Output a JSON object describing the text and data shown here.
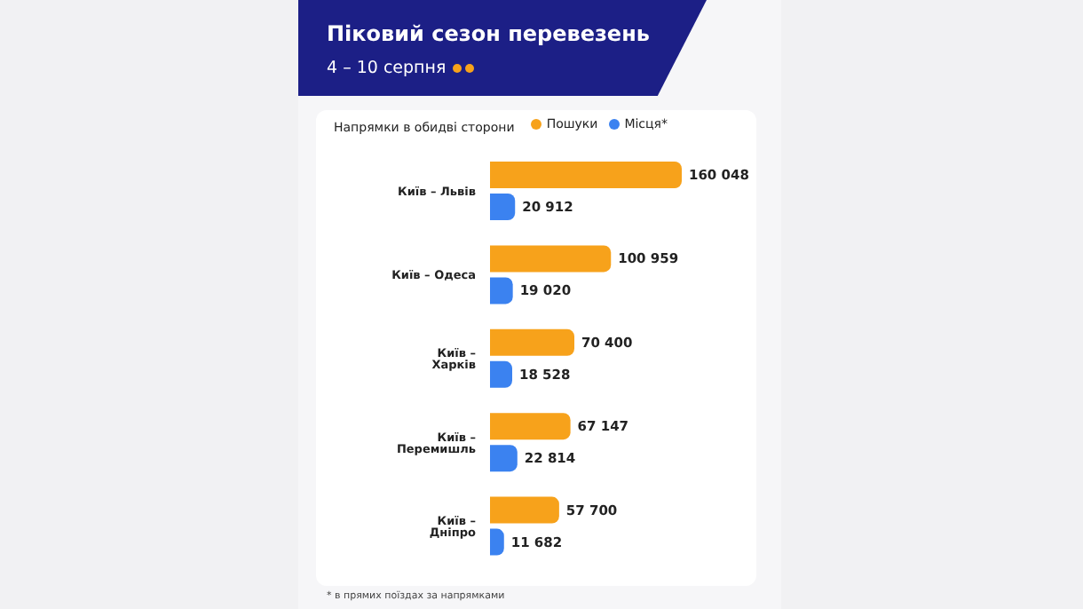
{
  "chart_data": {
    "type": "bar",
    "orientation": "horizontal",
    "title": "Піковий сезон перевезень",
    "subtitle": "4 – 10 серпня",
    "ylabel": "Напрямки в обидві сторони",
    "categories": [
      "Київ – Львів",
      "Київ – Одеса",
      "Київ – Харків",
      "Київ – Перемишль",
      "Київ – Дніпро"
    ],
    "series": [
      {
        "name": "Пошуки",
        "color": "#f7a21b",
        "values": [
          160048,
          100959,
          70400,
          67147,
          57700
        ],
        "value_labels": [
          "160 048",
          "100 959",
          "70 400",
          "67 147",
          "57 700"
        ]
      },
      {
        "name": "Місця*",
        "color": "#3b82f0",
        "values": [
          20912,
          19020,
          18528,
          22814,
          11682
        ],
        "value_labels": [
          "20 912",
          "19 020",
          "18 528",
          "22 814",
          "11 682"
        ]
      }
    ],
    "legend": "top right",
    "annotations": [
      "* в прямих поїздах за напрямками"
    ]
  }
}
